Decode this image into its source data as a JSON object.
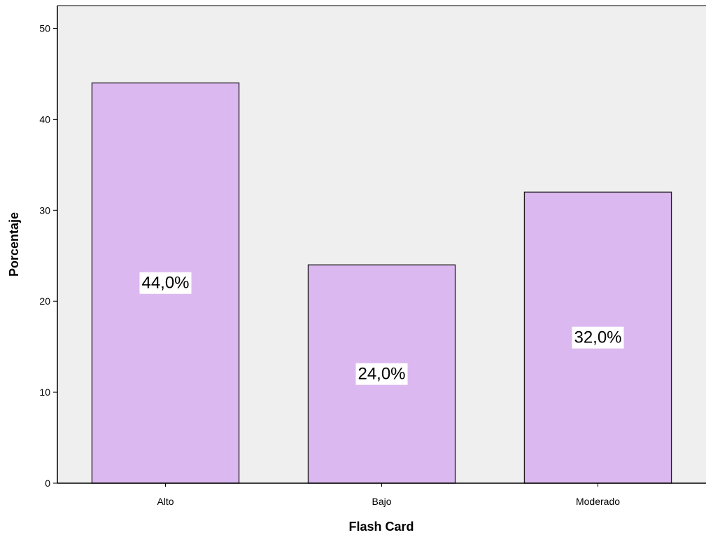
{
  "chart_data": {
    "type": "bar",
    "title": "",
    "xlabel": "Flash Card",
    "ylabel": "Porcentaje",
    "categories": [
      "Alto",
      "Bajo",
      "Moderado"
    ],
    "values": [
      44.0,
      24.0,
      32.0
    ],
    "data_labels": [
      "44,0%",
      "24,0%",
      "32,0%"
    ],
    "ylim": [
      0,
      52.5
    ],
    "yticks": [
      0,
      10,
      20,
      30,
      40,
      50
    ],
    "grid": false,
    "legend": "none",
    "colors": {
      "bar_fill": "#dcb8f0",
      "bar_stroke": "#1a1a1a",
      "plot_background": "#efefef",
      "label_background": "#ffffff"
    }
  }
}
